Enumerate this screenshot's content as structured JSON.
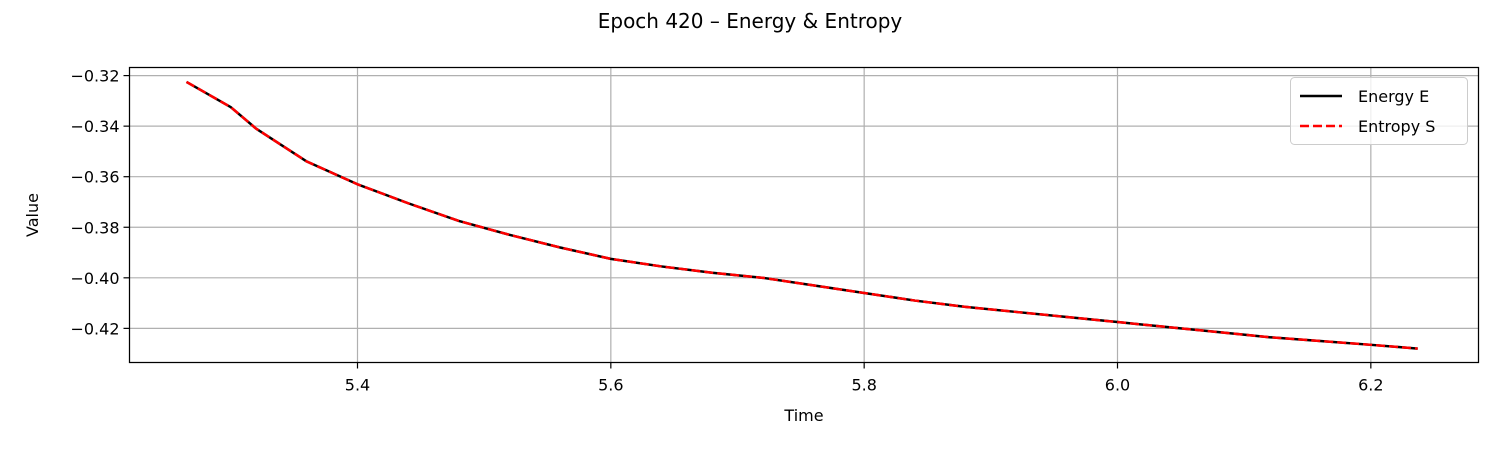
{
  "chart_data": {
    "type": "line",
    "title": "Epoch 420 – Energy & Entropy",
    "xlabel": "Time",
    "ylabel": "Value",
    "xlim": [
      5.22,
      6.285
    ],
    "ylim": [
      -0.4335,
      -0.3168
    ],
    "xticks": [
      5.4,
      5.6,
      5.8,
      6.0,
      6.2
    ],
    "xtick_labels": [
      "5.4",
      "5.6",
      "5.8",
      "6.0",
      "6.2"
    ],
    "yticks": [
      -0.32,
      -0.34,
      -0.36,
      -0.38,
      -0.4,
      -0.42
    ],
    "ytick_labels": [
      "−0.32",
      "−0.34",
      "−0.36",
      "−0.38",
      "−0.40",
      "−0.42"
    ],
    "grid": true,
    "legend_position": "top-right",
    "series": [
      {
        "name": "Energy E",
        "color": "#000000",
        "style": "solid",
        "x": [
          5.265,
          5.3,
          5.32,
          5.36,
          5.4,
          5.44,
          5.48,
          5.52,
          5.56,
          5.6,
          5.64,
          5.68,
          5.72,
          5.76,
          5.8,
          5.84,
          5.88,
          5.92,
          5.96,
          6.0,
          6.04,
          6.08,
          6.12,
          6.16,
          6.2,
          6.237
        ],
        "y": [
          -0.3225,
          -0.3325,
          -0.341,
          -0.354,
          -0.363,
          -0.3705,
          -0.3775,
          -0.383,
          -0.388,
          -0.3925,
          -0.3955,
          -0.398,
          -0.4,
          -0.403,
          -0.406,
          -0.409,
          -0.4115,
          -0.4135,
          -0.4155,
          -0.4175,
          -0.4195,
          -0.4215,
          -0.4235,
          -0.425,
          -0.4265,
          -0.428
        ]
      },
      {
        "name": "Entropy S",
        "color": "#ff0000",
        "style": "dashed",
        "x": [
          5.265,
          5.3,
          5.32,
          5.36,
          5.4,
          5.44,
          5.48,
          5.52,
          5.56,
          5.6,
          5.64,
          5.68,
          5.72,
          5.76,
          5.8,
          5.84,
          5.88,
          5.92,
          5.96,
          6.0,
          6.04,
          6.08,
          6.12,
          6.16,
          6.2,
          6.237
        ],
        "y": [
          -0.3225,
          -0.3325,
          -0.341,
          -0.354,
          -0.363,
          -0.3705,
          -0.3775,
          -0.383,
          -0.388,
          -0.3925,
          -0.3955,
          -0.398,
          -0.4,
          -0.403,
          -0.406,
          -0.409,
          -0.4115,
          -0.4135,
          -0.4155,
          -0.4175,
          -0.4195,
          -0.4215,
          -0.4235,
          -0.425,
          -0.4265,
          -0.428
        ]
      }
    ]
  }
}
